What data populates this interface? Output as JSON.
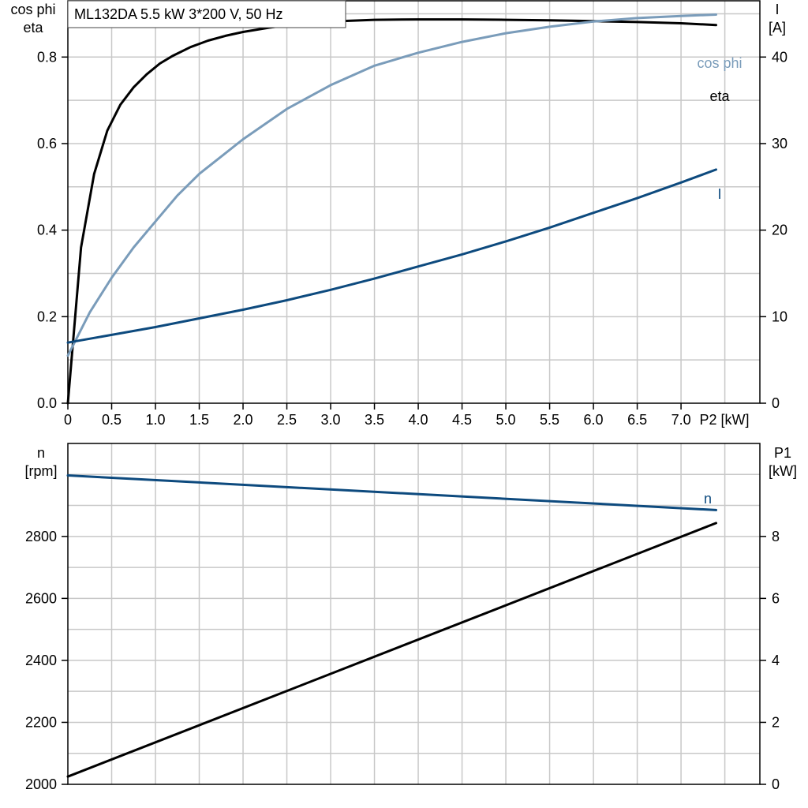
{
  "title": "ML132DA   5.5 kW   3*200 V, 50 Hz",
  "colors": {
    "eta": "#000000",
    "cos_phi": "#7a9cba",
    "current": "#0d4a7e",
    "speed": "#0d4a7e",
    "p1": "#000000",
    "grid": "#c8c8c8"
  },
  "chart_data": [
    {
      "type": "line",
      "title": "ML132DA   5.5 kW   3*200 V, 50 Hz",
      "xlabel": "P2 [kW]",
      "ylabel_left": [
        "cos phi",
        "eta"
      ],
      "ylabel_right": [
        "I",
        "[A]"
      ],
      "xlim": [
        0,
        7.9
      ],
      "xticks": [
        0.0,
        0.5,
        1.0,
        1.5,
        2.0,
        2.5,
        3.0,
        3.5,
        4.0,
        4.5,
        5.0,
        5.5,
        6.0,
        6.5,
        7.0
      ],
      "xtick_labels": [
        "0",
        "0.5",
        "1.0",
        "1.5",
        "2.0",
        "2.5",
        "3.0",
        "3.5",
        "4.0",
        "4.5",
        "5.0",
        "5.5",
        "6.0",
        "6.5",
        "7.0"
      ],
      "ylim_left": [
        0,
        0.93
      ],
      "yticks_left": [
        0.0,
        0.2,
        0.4,
        0.6,
        0.8
      ],
      "ytick_labels_left": [
        "0.0",
        "0.2",
        "0.4",
        "0.6",
        "0.8"
      ],
      "ylim_right": [
        0,
        46.5
      ],
      "yticks_right": [
        0,
        10,
        20,
        30,
        40
      ],
      "ytick_labels_right": [
        "0",
        "10",
        "20",
        "30",
        "40"
      ],
      "grid": true,
      "series": [
        {
          "name": "eta",
          "axis": "left",
          "x": [
            0,
            0.15,
            0.3,
            0.45,
            0.6,
            0.75,
            0.9,
            1.05,
            1.2,
            1.4,
            1.6,
            1.8,
            2.0,
            2.3,
            2.6,
            3.0,
            3.5,
            4.0,
            4.5,
            5.0,
            5.5,
            6.0,
            6.5,
            7.0,
            7.4
          ],
          "y": [
            0.0,
            0.36,
            0.53,
            0.63,
            0.69,
            0.73,
            0.76,
            0.785,
            0.803,
            0.823,
            0.838,
            0.849,
            0.858,
            0.868,
            0.876,
            0.882,
            0.886,
            0.887,
            0.887,
            0.886,
            0.885,
            0.883,
            0.881,
            0.878,
            0.874
          ]
        },
        {
          "name": "cos phi",
          "axis": "left",
          "x": [
            0,
            0.25,
            0.5,
            0.75,
            1.0,
            1.25,
            1.5,
            1.75,
            2.0,
            2.5,
            3.0,
            3.5,
            4.0,
            4.5,
            5.0,
            5.5,
            6.0,
            6.5,
            7.0,
            7.4
          ],
          "y": [
            0.11,
            0.21,
            0.29,
            0.36,
            0.42,
            0.48,
            0.53,
            0.57,
            0.61,
            0.68,
            0.735,
            0.78,
            0.81,
            0.835,
            0.855,
            0.87,
            0.882,
            0.89,
            0.895,
            0.898
          ]
        },
        {
          "name": "I",
          "axis": "right",
          "x": [
            0,
            0.5,
            1.0,
            1.5,
            2.0,
            2.5,
            3.0,
            3.5,
            4.0,
            4.5,
            5.0,
            5.5,
            6.0,
            6.5,
            7.0,
            7.4
          ],
          "y": [
            7.0,
            7.9,
            8.8,
            9.8,
            10.8,
            11.9,
            13.1,
            14.4,
            15.8,
            17.2,
            18.7,
            20.3,
            22.0,
            23.7,
            25.5,
            27.0
          ]
        }
      ]
    },
    {
      "type": "line",
      "xlabel": "",
      "ylabel_left": [
        "n",
        "[rpm]"
      ],
      "ylabel_right": [
        "P1",
        "[kW]"
      ],
      "xlim": [
        0,
        7.9
      ],
      "ylim_left": [
        2000,
        3100
      ],
      "yticks_left": [
        2000,
        2200,
        2400,
        2600,
        2800
      ],
      "ytick_labels_left": [
        "2000",
        "2200",
        "2400",
        "2600",
        "2800"
      ],
      "ylim_right": [
        0,
        11
      ],
      "yticks_right": [
        0,
        2,
        4,
        6,
        8
      ],
      "ytick_labels_right": [
        "0",
        "2",
        "4",
        "6",
        "8"
      ],
      "grid": true,
      "series": [
        {
          "name": "n",
          "axis": "left",
          "x": [
            0,
            7.4
          ],
          "y": [
            2997,
            2885
          ]
        },
        {
          "name": "",
          "axis": "right",
          "x": [
            0,
            7.4
          ],
          "y": [
            0.25,
            8.43
          ]
        }
      ]
    }
  ]
}
